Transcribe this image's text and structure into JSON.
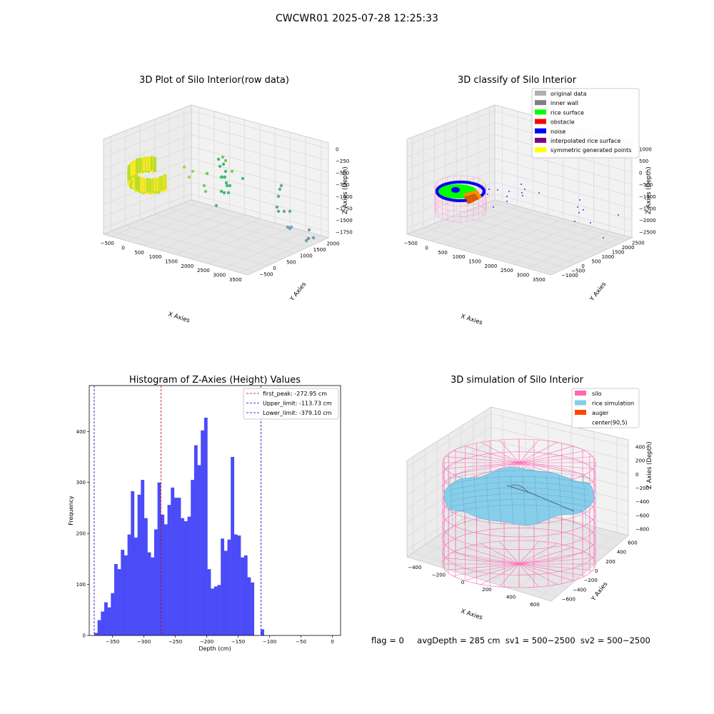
{
  "suptitle": "CWCWR01 2025-07-28 12:25:33",
  "footer": {
    "flag": "flag = 0",
    "avg": "avgDepth = 285 cm",
    "sv1": "sv1 = 500~2500",
    "sv2": "sv2 = 500~2500"
  },
  "colors": {
    "hist_bar": "#4b4bf8",
    "peak_line": "#c00000",
    "limit_line": "#0000c0",
    "silo": "#ff69b4",
    "rice_simulation": "#87ceeb",
    "auger": "#ff4500",
    "pane": "#f2f2f2",
    "grid": "#cfcfcf"
  },
  "chart_data": [
    {
      "type": "scatter",
      "is_3d": true,
      "title": "3D Plot of Silo Interior(row data)",
      "xlabel": "X Axies",
      "ylabel": "Y Axies",
      "zlabel": "Z Axies (Depth)",
      "x_ticks": [
        "−500",
        "0",
        "500",
        "1000",
        "1500",
        "2000",
        "2500",
        "3000",
        "3500"
      ],
      "y_ticks": [
        "−500",
        "0",
        "500",
        "1000",
        "1500",
        "2000"
      ],
      "z_ticks": [
        "0",
        "−250",
        "−500",
        "−750",
        "−1000",
        "−1250",
        "−1500",
        "−1750"
      ],
      "colormap": "viridis",
      "description": "dense yellow-green cluster near origin plus scattered green/teal/purple outlier points further along X"
    },
    {
      "type": "scatter",
      "is_3d": true,
      "title": "3D classify of Silo Interior",
      "xlabel": "X Axies",
      "ylabel": "Y Axies",
      "zlabel": "Z Axies (Depth)",
      "x_ticks": [
        "−500",
        "0",
        "500",
        "1000",
        "1500",
        "2000",
        "2500",
        "3000",
        "3500"
      ],
      "y_ticks": [
        "−1000",
        "−500",
        "0",
        "500",
        "1000",
        "1500",
        "2000",
        "2500"
      ],
      "z_ticks": [
        "1000",
        "500",
        "0",
        "−500",
        "−1000",
        "−1500",
        "−2000",
        "−2500"
      ],
      "legend": [
        {
          "name": "original data",
          "color": "#b0b0b0"
        },
        {
          "name": "inner wall",
          "color": "#808080"
        },
        {
          "name": "rice surface",
          "color": "#00ff00"
        },
        {
          "name": "obstacle",
          "color": "#ff0000"
        },
        {
          "name": "noise",
          "color": "#0000ff"
        },
        {
          "name": "interpolated rice surface",
          "color": "#800080"
        },
        {
          "name": "symmetric generated points",
          "color": "#ffff00"
        }
      ],
      "legend_loc": "upper right"
    },
    {
      "type": "bar",
      "title": "Histogram of Z-Axies (Height) Values",
      "xlabel": "Depth (cm)",
      "ylabel": "Frequency",
      "xlim": [
        -387,
        13
      ],
      "ylim": [
        0,
        490
      ],
      "x_ticks": [
        -350,
        -300,
        -250,
        -200,
        -150,
        -100,
        -50,
        0
      ],
      "y_ticks": [
        0,
        100,
        200,
        300,
        400
      ],
      "bin_width": 5.3,
      "bin_start": -379.1,
      "values": [
        5,
        30,
        47,
        65,
        55,
        83,
        140,
        130,
        168,
        157,
        198,
        283,
        192,
        276,
        305,
        230,
        163,
        153,
        208,
        300,
        237,
        218,
        256,
        290,
        270,
        270,
        230,
        224,
        233,
        305,
        373,
        334,
        402,
        427,
        130,
        92,
        96,
        99,
        190,
        166,
        188,
        350,
        198,
        196,
        153,
        157,
        114,
        104,
        0,
        0,
        12
      ],
      "vlines": [
        {
          "name": "first_peak: -272.95 cm",
          "x": -272.95,
          "style": "red dashed"
        },
        {
          "name": "Upper_limit: -113.73 cm",
          "x": -113.73,
          "style": "blue dashed"
        },
        {
          "name": "Lower_limit: -379.10 cm",
          "x": -379.1,
          "style": "blue dashed"
        }
      ],
      "legend_loc": "upper right"
    },
    {
      "type": "surface",
      "is_3d": true,
      "title": "3D simulation of Silo Interior",
      "xlabel": "X Axies",
      "ylabel": "Y Axies",
      "zlabel": "Z Axies (Depth)",
      "x_ticks": [
        "−400",
        "−200",
        "0",
        "200",
        "400",
        "600"
      ],
      "y_ticks": [
        "−600",
        "−400",
        "−200",
        "0",
        "200",
        "400",
        "600"
      ],
      "z_ticks": [
        "400",
        "200",
        "0",
        "−200",
        "−400",
        "−600",
        "−800"
      ],
      "legend": [
        {
          "name": "silo",
          "color": "#ff69b4"
        },
        {
          "name": "rice simulation",
          "color": "#87ceeb"
        },
        {
          "name": "auger",
          "color": "#ff4500"
        },
        {
          "name": "center(90,5)",
          "color": ""
        }
      ],
      "legend_loc": "upper right"
    }
  ]
}
